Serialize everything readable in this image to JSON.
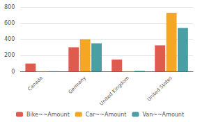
{
  "chart_data": {
    "type": "bar",
    "categories": [
      "Canada",
      "Germany",
      "United Kingdom",
      "United States"
    ],
    "series": [
      {
        "name": "Bike~~Amount",
        "color": "#e05a4e",
        "values": [
          100,
          300,
          150,
          325
        ]
      },
      {
        "name": "Car~~Amount",
        "color": "#f5a623",
        "values": [
          5,
          400,
          5,
          725
        ]
      },
      {
        "name": "Van~~Amount",
        "color": "#4a9fa5",
        "values": [
          5,
          350,
          10,
          540
        ]
      }
    ],
    "ylim": [
      0,
      800
    ],
    "yticks": [
      0,
      200,
      400,
      600,
      800
    ],
    "grid": true,
    "legend": "bottom"
  }
}
